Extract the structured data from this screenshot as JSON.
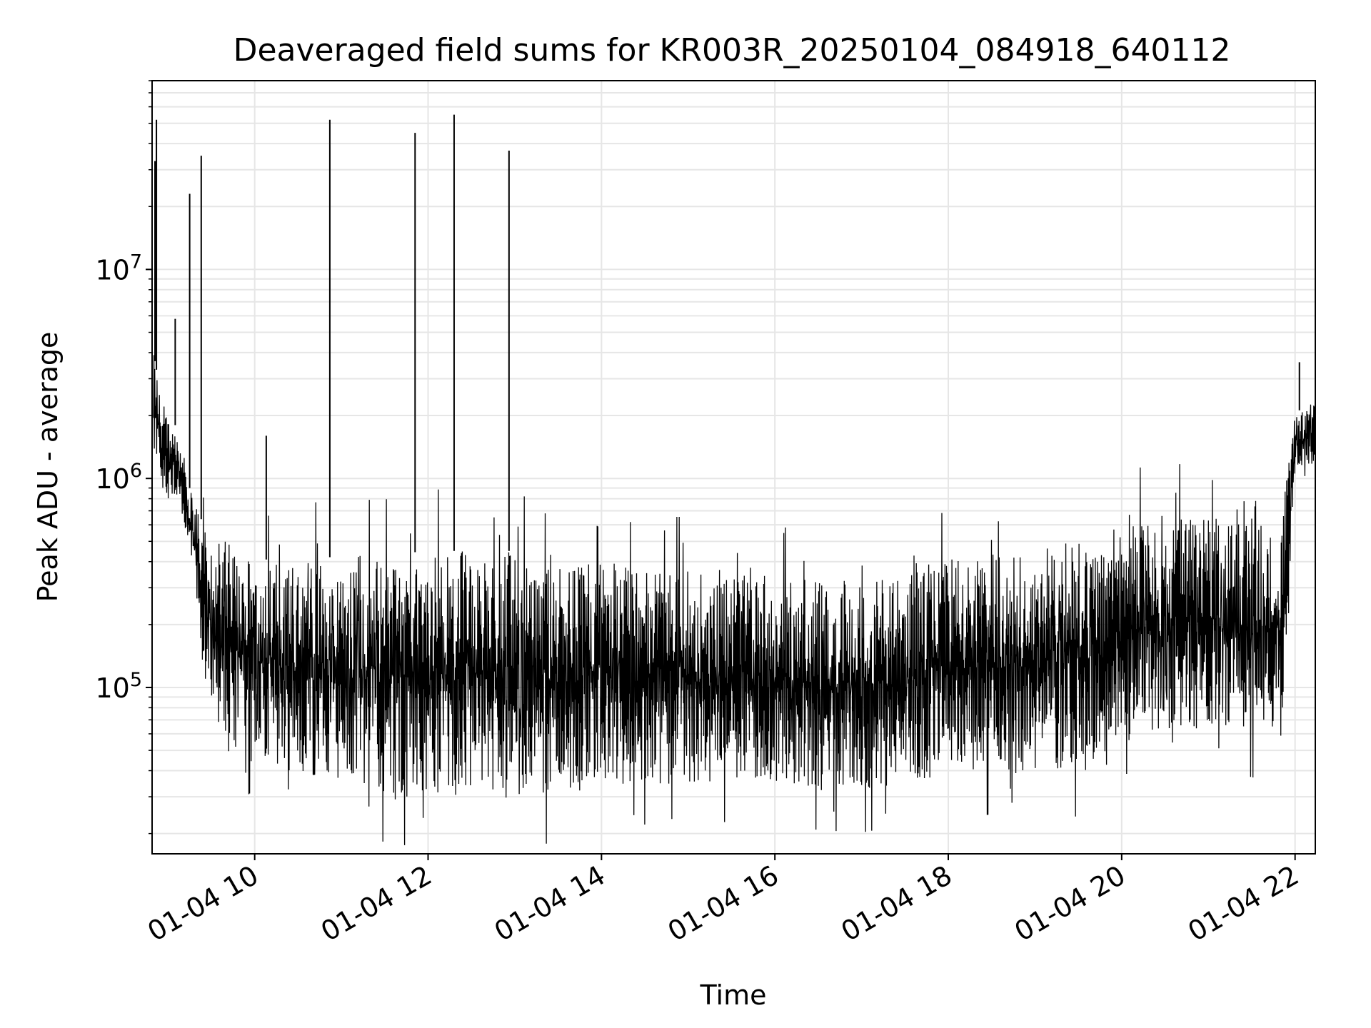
{
  "chart_data": {
    "type": "line",
    "title": "Deaveraged field sums for KR003R_20250104_084918_640112",
    "xlabel": "Time",
    "ylabel": "Peak ADU - average",
    "yscale": "log",
    "grid": true,
    "grid_color": "#e6e6e6",
    "line_color": "#000000",
    "xlim": [
      "2025-01-04 08:49",
      "2025-01-04 22:14"
    ],
    "ylim": [
      16000,
      80000000
    ],
    "x_ticks": [
      "01-04 10",
      "01-04 12",
      "01-04 14",
      "01-04 16",
      "01-04 18",
      "01-04 20",
      "01-04 22"
    ],
    "y_ticks": [
      {
        "base": "10",
        "exp": "5",
        "value": 100000
      },
      {
        "base": "10",
        "exp": "6",
        "value": 1000000
      },
      {
        "base": "10",
        "exp": "7",
        "value": 10000000
      }
    ],
    "series": [
      {
        "x": [
          "2025-01-04 08:50",
          "2025-01-04 08:55",
          "2025-01-04 09:00",
          "2025-01-04 09:05",
          "2025-01-04 09:10",
          "2025-01-04 09:15",
          "2025-01-04 09:20",
          "2025-01-04 09:25",
          "2025-01-04 09:30",
          "2025-01-04 09:40",
          "2025-01-04 09:50",
          "2025-01-04 10:00",
          "2025-01-04 10:15",
          "2025-01-04 10:30",
          "2025-01-04 10:45",
          "2025-01-04 11:00",
          "2025-01-04 11:15",
          "2025-01-04 11:30",
          "2025-01-04 11:45",
          "2025-01-04 12:00",
          "2025-01-04 12:15",
          "2025-01-04 12:30",
          "2025-01-04 12:45",
          "2025-01-04 13:00",
          "2025-01-04 13:15",
          "2025-01-04 13:30",
          "2025-01-04 13:45",
          "2025-01-04 14:00",
          "2025-01-04 14:30",
          "2025-01-04 15:00",
          "2025-01-04 15:30",
          "2025-01-04 16:00",
          "2025-01-04 16:30",
          "2025-01-04 17:00",
          "2025-01-04 17:30",
          "2025-01-04 18:00",
          "2025-01-04 18:30",
          "2025-01-04 19:00",
          "2025-01-04 19:30",
          "2025-01-04 19:45",
          "2025-01-04 20:00",
          "2025-01-04 20:30",
          "2025-01-04 21:00",
          "2025-01-04 21:30",
          "2025-01-04 21:50",
          "2025-01-04 22:00",
          "2025-01-04 22:05",
          "2025-01-04 22:10",
          "2025-01-04 22:14"
        ],
        "low": [
          1300000,
          900000,
          800000,
          800000,
          600000,
          450000,
          250000,
          110000,
          80000,
          50000,
          45000,
          50000,
          40000,
          40000,
          35000,
          32000,
          32000,
          31000,
          30000,
          30000,
          30000,
          31000,
          31000,
          30000,
          30000,
          31000,
          32000,
          33000,
          34000,
          35000,
          36000,
          35000,
          33000,
          32000,
          35000,
          38000,
          40000,
          40000,
          40000,
          40000,
          55000,
          60000,
          65000,
          60000,
          55000,
          1100000,
          1100000,
          1150000,
          1200000
        ],
        "high": [
          4000000,
          2500000,
          2000000,
          1800000,
          1200000,
          900000,
          700000,
          600000,
          500000,
          500000,
          450000,
          420000,
          400000,
          400000,
          420000,
          420000,
          430000,
          440000,
          440000,
          450000,
          450000,
          450000,
          450000,
          450000,
          440000,
          430000,
          420000,
          400000,
          380000,
          360000,
          350000,
          340000,
          330000,
          320000,
          340000,
          400000,
          450000,
          480000,
          500000,
          550000,
          600000,
          650000,
          650000,
          650000,
          600000,
          2000000,
          2200000,
          2300000,
          2300000
        ],
        "spikes": [
          {
            "x": "2025-01-04 08:52",
            "y": 52000000
          },
          {
            "x": "2025-01-04 08:51",
            "y": 33000000
          },
          {
            "x": "2025-01-04 09:05",
            "y": 5800000
          },
          {
            "x": "2025-01-04 09:15",
            "y": 23000000
          },
          {
            "x": "2025-01-04 09:23",
            "y": 35000000
          },
          {
            "x": "2025-01-04 10:08",
            "y": 1600000
          },
          {
            "x": "2025-01-04 10:52",
            "y": 52000000
          },
          {
            "x": "2025-01-04 11:51",
            "y": 45000000
          },
          {
            "x": "2025-01-04 12:18",
            "y": 55000000
          },
          {
            "x": "2025-01-04 12:56",
            "y": 37000000
          },
          {
            "x": "2025-01-04 22:03",
            "y": 3600000
          }
        ]
      }
    ]
  }
}
